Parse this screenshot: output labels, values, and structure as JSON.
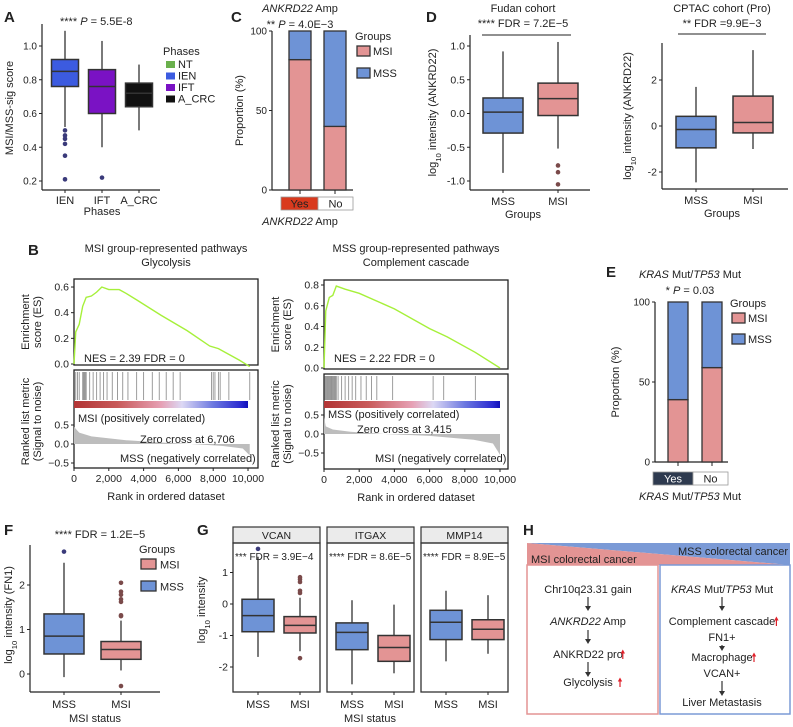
{
  "colors": {
    "msi": "#e39494",
    "mss": "#6e93d6",
    "es_line": "#a6f03a",
    "yes_c": "#d93a1e",
    "yes_e": "#2e3a4f",
    "h_msi": "#e39494",
    "h_mss": "#7b9ad6",
    "up_arrow": "#e0202a"
  },
  "chart_data": [
    {
      "id": "A",
      "letter": "A",
      "type": "box",
      "title": [
        {
          "t": "**** "
        },
        {
          "t": "P",
          "i": true
        },
        {
          "t": " = 5.5E-8"
        }
      ],
      "ylabel": "MSI/MSS-sig score",
      "xlabel": "Phases",
      "ylim": [
        0.18,
        1.12
      ],
      "yticks": [
        {
          "v": 1.0,
          "label": "1.0"
        },
        {
          "v": 0.8,
          "label": "0.8"
        },
        {
          "v": 0.6,
          "label": "0.6"
        },
        {
          "v": 0.4,
          "label": "0.4"
        },
        {
          "v": 0.2,
          "label": "0.2"
        }
      ],
      "categories": [
        "IEN",
        "IFT",
        "A_CRC"
      ],
      "boxes": [
        {
          "group": "IEN",
          "color": "#3c5be0",
          "lw": 0.52,
          "q1": 0.76,
          "med": 0.85,
          "q3": 0.92,
          "uw": 1.09,
          "outliers": [
            0.5,
            0.47,
            0.45,
            0.42,
            0.35,
            0.21
          ]
        },
        {
          "group": "IFT",
          "color": "#7a12c4",
          "lw": 0.4,
          "q1": 0.6,
          "med": 0.76,
          "q3": 0.86,
          "uw": 1.03,
          "outliers": [
            0.22
          ]
        },
        {
          "group": "A_CRC",
          "color": "#111111",
          "lw": 0.5,
          "q1": 0.64,
          "med": 0.72,
          "q3": 0.78,
          "uw": 0.89,
          "outliers": []
        }
      ],
      "legend": {
        "title": "Phases",
        "placement": "right",
        "items": [
          {
            "label": "NT",
            "color": "#6ab04c"
          },
          {
            "label": "IEN",
            "color": "#3c5be0"
          },
          {
            "label": "IFT",
            "color": "#7a12c4"
          },
          {
            "label": "A_CRC",
            "color": "#111111"
          }
        ]
      }
    },
    {
      "id": "C",
      "letter": "C",
      "type": "bar",
      "stacked": true,
      "title": [
        {
          "t": "ANKRD22",
          "i": true
        },
        {
          "t": " Amp"
        }
      ],
      "subtitle": [
        {
          "t": "** "
        },
        {
          "t": "P",
          "i": true
        },
        {
          "t": " = 4.0E−3"
        }
      ],
      "ylabel": "Proportion (%)",
      "xlabel": [
        {
          "t": "ANKRD22",
          "i": true
        },
        {
          "t": " Amp"
        }
      ],
      "ylim": [
        0,
        100
      ],
      "yticks": [
        {
          "v": 100,
          "label": "100"
        },
        {
          "v": 50,
          "label": "50"
        },
        {
          "v": 0,
          "label": "0"
        }
      ],
      "categories": [
        "Yes",
        "No"
      ],
      "series": [
        {
          "name": "MSI",
          "values": [
            82,
            40
          ]
        },
        {
          "name": "MSS",
          "values": [
            18,
            60
          ]
        }
      ],
      "legend": {
        "title": "Groups",
        "placement": "right",
        "items": [
          "MSI",
          "MSS"
        ]
      }
    },
    {
      "id": "D1",
      "letter": "D",
      "type": "box",
      "title": "Fudan cohort",
      "stat": "**** FDR = 7.2E−5",
      "ylabel": [
        {
          "t": "log"
        },
        {
          "t": "10",
          "sub": true
        },
        {
          "t": " intensity (ANKRD22)"
        }
      ],
      "xlabel": "Groups",
      "ylim": [
        -1.1,
        1.1
      ],
      "yticks": [
        {
          "v": 1.0,
          "label": "1.0"
        },
        {
          "v": 0.5,
          "label": "0.5"
        },
        {
          "v": 0.0,
          "label": "0.0"
        },
        {
          "v": -0.5,
          "label": "-0.5"
        },
        {
          "v": -1.0,
          "label": "-1.0"
        }
      ],
      "categories": [
        "MSS",
        "MSI"
      ],
      "boxes": [
        {
          "group": "MSS",
          "lw": -0.88,
          "q1": -0.29,
          "med": 0.02,
          "q3": 0.23,
          "uw": 0.92,
          "outliers": []
        },
        {
          "group": "MSI",
          "lw": -0.52,
          "q1": -0.03,
          "med": 0.22,
          "q3": 0.45,
          "uw": 1.06,
          "outliers": [
            -0.77,
            -0.87,
            -1.05
          ]
        }
      ]
    },
    {
      "id": "D2",
      "letter": "",
      "type": "box",
      "title": "CPTAC cohort (Pro)",
      "stat": "** FDR =9.9E−3",
      "ylabel": [
        {
          "t": "log"
        },
        {
          "t": "10",
          "sub": true
        },
        {
          "t": " intensity (ANKRD22)"
        }
      ],
      "xlabel": "Groups",
      "ylim": [
        -2.7,
        3.6
      ],
      "yticks": [
        {
          "v": 2,
          "label": "2"
        },
        {
          "v": 0,
          "label": "0"
        },
        {
          "v": -2,
          "label": "-2"
        }
      ],
      "categories": [
        "MSS",
        "MSI"
      ],
      "boxes": [
        {
          "group": "MSS",
          "lw": -2.45,
          "q1": -0.95,
          "med": -0.15,
          "q3": 0.42,
          "uw": 1.7,
          "outliers": []
        },
        {
          "group": "MSI",
          "lw": -1.0,
          "q1": -0.3,
          "med": 0.15,
          "q3": 1.3,
          "uw": 3.3,
          "outliers": []
        }
      ]
    },
    {
      "id": "B1",
      "letter": "B",
      "type": "line",
      "title": [
        "MSI group-represented pathways",
        "Glycolysis"
      ],
      "ylabel_top": [
        "Enrichment",
        "score (ES)"
      ],
      "ylabel_bottom": [
        "Ranked list metric",
        "(Signal to noise)"
      ],
      "xlabel": "Rank in ordered dataset",
      "xlim": [
        0,
        10000
      ],
      "xticks": [
        {
          "v": 0,
          "label": "0"
        },
        {
          "v": 2000,
          "label": "2,000"
        },
        {
          "v": 4000,
          "label": "4,000"
        },
        {
          "v": 6000,
          "label": "6,000"
        },
        {
          "v": 8000,
          "label": "8,000"
        },
        {
          "v": 10000,
          "label": "10,000"
        }
      ],
      "es_ticks": [
        {
          "v": 0.6,
          "label": "0.6"
        },
        {
          "v": 0.4,
          "label": "0.4"
        },
        {
          "v": 0.2,
          "label": "0.2"
        },
        {
          "v": 0.0,
          "label": "0.0"
        }
      ],
      "metric_ticks": [
        {
          "v": 0.5,
          "label": "0.5"
        },
        {
          "v": 0.0,
          "label": "0.0"
        },
        {
          "v": -0.5,
          "label": "−0.5"
        }
      ],
      "nes": "NES = 2.39 FDR = 0",
      "pos_label": "MSI (positively correlated)",
      "neg_label": "MSS (negatively correlated)",
      "zero_cross": "Zero cross at 6,706",
      "es_curve": [
        [
          0,
          0
        ],
        [
          100,
          0.25
        ],
        [
          300,
          0.31
        ],
        [
          500,
          0.45
        ],
        [
          700,
          0.52
        ],
        [
          1000,
          0.53
        ],
        [
          1300,
          0.56
        ],
        [
          1600,
          0.6
        ],
        [
          2000,
          0.58
        ],
        [
          2600,
          0.58
        ],
        [
          3000,
          0.55
        ],
        [
          3600,
          0.5
        ],
        [
          5000,
          0.38
        ],
        [
          6500,
          0.26
        ],
        [
          7800,
          0.14
        ],
        [
          8300,
          0.12
        ],
        [
          9500,
          0.03
        ],
        [
          10100,
          -0.02
        ]
      ],
      "hits": [
        100,
        200,
        300,
        500,
        550,
        600,
        650,
        700,
        900,
        1100,
        1300,
        1500,
        1700,
        1900,
        2200,
        2500,
        2800,
        3100,
        3600,
        4000,
        4500,
        4900,
        5300,
        5700,
        6100,
        7900,
        8000,
        8100,
        8300,
        8400,
        8900,
        10100
      ],
      "metric_curve": [
        [
          0,
          0.45
        ],
        [
          300,
          0.3
        ],
        [
          1000,
          0.2
        ],
        [
          3000,
          0.1
        ],
        [
          5000,
          0.04
        ],
        [
          6706,
          0
        ],
        [
          8500,
          -0.05
        ],
        [
          9700,
          -0.12
        ],
        [
          10100,
          -0.3
        ]
      ]
    },
    {
      "id": "B2",
      "letter": "",
      "type": "line",
      "title": [
        "MSS group-represented pathways",
        "Complement cascade"
      ],
      "ylabel_top": [
        "Enrichment",
        "score (ES)"
      ],
      "ylabel_bottom": [
        "Ranked list metric",
        "(Signal to noise)"
      ],
      "xlabel": "Rank in ordered dataset",
      "xlim": [
        0,
        10000
      ],
      "xticks": [
        {
          "v": 0,
          "label": "0"
        },
        {
          "v": 2000,
          "label": "2,000"
        },
        {
          "v": 4000,
          "label": "4,000"
        },
        {
          "v": 6000,
          "label": "6,000"
        },
        {
          "v": 8000,
          "label": "8,000"
        },
        {
          "v": 10000,
          "label": "10,000"
        }
      ],
      "es_ticks": [
        {
          "v": 0.8,
          "label": "0.8"
        },
        {
          "v": 0.6,
          "label": "0.6"
        },
        {
          "v": 0.4,
          "label": "0.4"
        },
        {
          "v": 0.2,
          "label": "0.2"
        },
        {
          "v": 0.0,
          "label": "0.0"
        }
      ],
      "metric_ticks": [
        {
          "v": 0.5,
          "label": "0.5"
        },
        {
          "v": 0.0,
          "label": "0.0"
        },
        {
          "v": -0.5,
          "label": "−0.5"
        }
      ],
      "nes": "NES = 2.22 FDR = 0",
      "pos_label": "MSS (positively correlated)",
      "neg_label": "MSI (negatively correlated)",
      "zero_cross": "Zero cross at 3,415",
      "es_curve": [
        [
          0,
          0
        ],
        [
          100,
          0.55
        ],
        [
          300,
          0.68
        ],
        [
          500,
          0.7
        ],
        [
          700,
          0.79
        ],
        [
          1200,
          0.76
        ],
        [
          2000,
          0.72
        ],
        [
          4000,
          0.57
        ],
        [
          6000,
          0.38
        ],
        [
          7000,
          0.3
        ],
        [
          8600,
          0.15
        ],
        [
          10000,
          0
        ]
      ],
      "hits": [
        50,
        100,
        150,
        200,
        250,
        300,
        350,
        400,
        450,
        500,
        550,
        600,
        650,
        700,
        800,
        1000,
        1200,
        1400,
        1600,
        1800,
        2100,
        2400,
        2700,
        3000,
        3900,
        6200,
        6800,
        8600
      ],
      "metric_curve": [
        [
          0,
          0.45
        ],
        [
          100,
          0.2
        ],
        [
          500,
          0.12
        ],
        [
          1500,
          0.06
        ],
        [
          3415,
          0
        ],
        [
          6000,
          -0.05
        ],
        [
          8500,
          -0.15
        ],
        [
          9600,
          -0.25
        ],
        [
          10000,
          -0.55
        ]
      ]
    },
    {
      "id": "E",
      "letter": "E",
      "type": "bar",
      "stacked": true,
      "title": [
        {
          "t": "KRAS",
          "i": true
        },
        {
          "t": " Mut/"
        },
        {
          "t": "TP53",
          "i": true
        },
        {
          "t": " Mut"
        }
      ],
      "subtitle": [
        {
          "t": "* "
        },
        {
          "t": "P",
          "i": true
        },
        {
          "t": " = 0.03"
        }
      ],
      "ylabel": "Proportion (%)",
      "xlabel": [
        {
          "t": "KRAS",
          "i": true
        },
        {
          "t": " Mut/"
        },
        {
          "t": "TP53",
          "i": true
        },
        {
          "t": " Mut"
        }
      ],
      "ylim": [
        0,
        100
      ],
      "yticks": [
        {
          "v": 100,
          "label": "100"
        },
        {
          "v": 50,
          "label": "50"
        },
        {
          "v": 0,
          "label": "0"
        }
      ],
      "categories": [
        "Yes",
        "No"
      ],
      "series": [
        {
          "name": "MSI",
          "values": [
            39,
            59
          ]
        },
        {
          "name": "MSS",
          "values": [
            61,
            41
          ]
        }
      ],
      "legend": {
        "title": "Groups",
        "placement": "right",
        "items": [
          "MSI",
          "MSS"
        ]
      }
    },
    {
      "id": "F",
      "letter": "F",
      "type": "box",
      "stat": "**** FDR = 1.2E−5",
      "ylabel": [
        {
          "t": "log"
        },
        {
          "t": "10",
          "sub": true
        },
        {
          "t": " intensity (FN1)"
        }
      ],
      "xlabel": "MSI status",
      "ylim": [
        -0.4,
        2.9
      ],
      "yticks": [
        {
          "v": 2,
          "label": "2"
        },
        {
          "v": 1,
          "label": "1"
        },
        {
          "v": 0,
          "label": "0"
        }
      ],
      "categories": [
        "MSS",
        "MSI"
      ],
      "boxes": [
        {
          "group": "MSS",
          "lw": -0.07,
          "q1": 0.45,
          "med": 0.85,
          "q3": 1.35,
          "uw": 2.5,
          "outliers": [
            2.75
          ]
        },
        {
          "group": "MSI",
          "lw": 0.08,
          "q1": 0.33,
          "med": 0.55,
          "q3": 0.73,
          "uw": 1.2,
          "outliers": [
            1.3,
            1.32,
            1.62,
            1.68,
            1.78,
            1.85,
            2.05,
            -0.27
          ]
        }
      ],
      "legend": {
        "title": "Groups",
        "placement": "top-right",
        "items": [
          "MSI",
          "MSS"
        ]
      }
    },
    {
      "id": "G",
      "letter": "G",
      "type": "box",
      "ylabel": [
        {
          "t": "log"
        },
        {
          "t": "10",
          "sub": true
        },
        {
          "t": " intensity"
        }
      ],
      "xlabel": "MSI status",
      "ylim": [
        -2.8,
        2.0
      ],
      "yticks": [
        {
          "v": 1,
          "label": "1"
        },
        {
          "v": 0,
          "label": "0"
        },
        {
          "v": -1,
          "label": "-1"
        },
        {
          "v": -2,
          "label": "-2"
        }
      ],
      "categories": [
        "MSS",
        "MSI"
      ],
      "facets": [
        {
          "name": "VCAN",
          "stat": "*** FDR = 3.9E−4",
          "boxes": [
            {
              "group": "MSS",
              "lw": -1.68,
              "q1": -0.88,
              "med": -0.37,
              "q3": 0.15,
              "uw": 1.5,
              "outliers": [
                1.75
              ]
            },
            {
              "group": "MSI",
              "lw": -1.5,
              "q1": -0.92,
              "med": -0.68,
              "q3": -0.4,
              "uw": 0.2,
              "outliers": [
                0.35,
                0.42,
                0.7,
                0.78,
                0.85,
                -1.72
              ]
            }
          ]
        },
        {
          "name": "ITGAX",
          "stat": "**** FDR = 8.6E−5",
          "boxes": [
            {
              "group": "MSS",
              "lw": -2.55,
              "q1": -1.45,
              "med": -0.9,
              "q3": -0.6,
              "uw": 0.12,
              "outliers": []
            },
            {
              "group": "MSI",
              "lw": -2.2,
              "q1": -1.82,
              "med": -1.38,
              "q3": -1.0,
              "uw": -0.02,
              "outliers": []
            }
          ]
        },
        {
          "name": "MMP14",
          "stat": "**** FDR = 8.9E−5",
          "boxes": [
            {
              "group": "MSS",
              "lw": -1.82,
              "q1": -1.13,
              "med": -0.58,
              "q3": -0.2,
              "uw": 0.42,
              "outliers": []
            },
            {
              "group": "MSI",
              "lw": -1.58,
              "q1": -1.13,
              "med": -0.8,
              "q3": -0.5,
              "uw": 0.28,
              "outliers": []
            }
          ]
        }
      ]
    }
  ],
  "panel_h": {
    "letter": "H",
    "msi_header": "MSI colorectal cancer",
    "mss_header": "MSS colorectal cancer",
    "msi_steps": [
      [
        {
          "t": "Chr10q23.31 gain"
        }
      ],
      [
        {
          "t": "ANKRD22",
          "i": true
        },
        {
          "t": " Amp"
        }
      ],
      [
        {
          "t": "ANKRD22 pro"
        },
        {
          "t": "",
          "up": true
        }
      ],
      [
        {
          "t": "Glycolysis"
        },
        {
          "t": "",
          "up": true
        }
      ]
    ],
    "mss_steps": [
      [
        {
          "t": "KRAS",
          "i": true
        },
        {
          "t": " Mut/"
        },
        {
          "t": "TP53",
          "i": true
        },
        {
          "t": " Mut"
        }
      ],
      [
        {
          "t": "Complement cascade"
        },
        {
          "t": "",
          "up": true
        }
      ],
      [
        {
          "t": "FN1+"
        }
      ],
      [
        {
          "t": "Macrophage"
        },
        {
          "t": "",
          "up": true
        }
      ],
      [
        {
          "t": "VCAN+"
        }
      ],
      [
        {
          "t": "Liver Metastasis"
        }
      ]
    ]
  }
}
